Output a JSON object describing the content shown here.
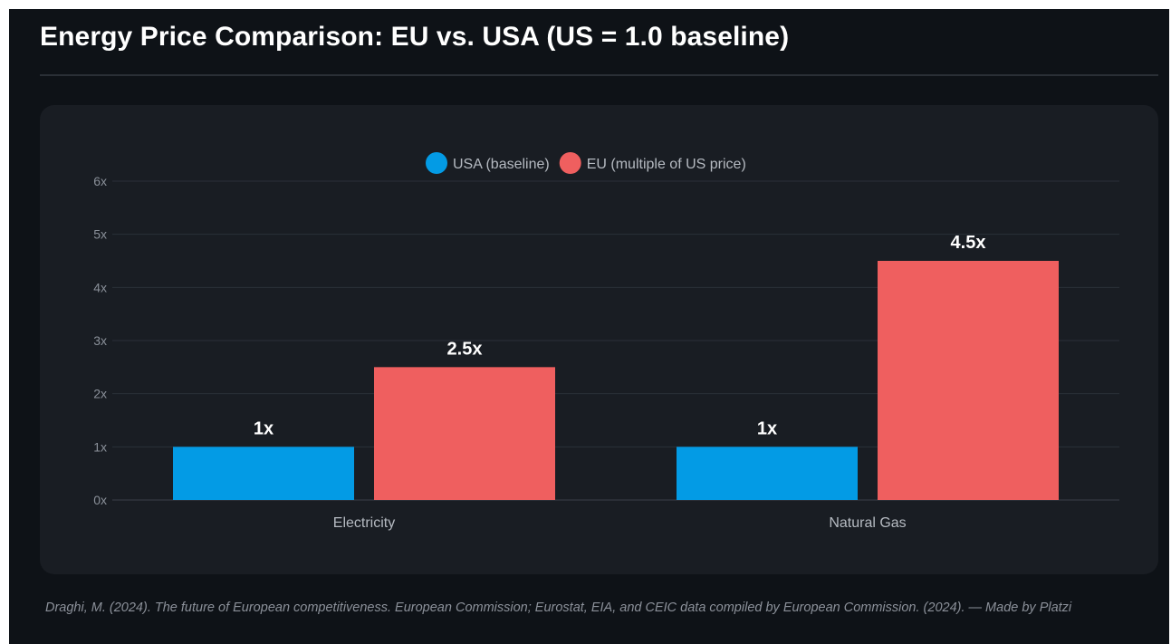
{
  "title": "Energy Price Comparison: EU vs. USA (US = 1.0 baseline)",
  "source": "Draghi, M. (2024). The future of European competitiveness. European Commission; Eurostat, EIA, and CEIC data compiled by European Commission. (2024). — Made by Platzi",
  "chart_data": {
    "type": "bar",
    "title": "",
    "xlabel": "",
    "ylabel": "",
    "categories": [
      "Electricity",
      "Natural Gas"
    ],
    "series": [
      {
        "name": "USA (baseline)",
        "values": [
          1,
          1
        ],
        "labels": [
          "1x",
          "1x"
        ],
        "color": "#039be5"
      },
      {
        "name": "EU (multiple of US price)",
        "values": [
          2.5,
          4.5
        ],
        "labels": [
          "2.5x",
          "4.5x"
        ],
        "color": "#ef5f5f"
      }
    ],
    "ylim": [
      0,
      6
    ],
    "yticks": [
      0,
      1,
      2,
      3,
      4,
      5,
      6
    ],
    "ytick_labels": [
      "0x",
      "1x",
      "2x",
      "3x",
      "4x",
      "5x",
      "6x"
    ],
    "grid": true,
    "legend_position": "top-center"
  }
}
